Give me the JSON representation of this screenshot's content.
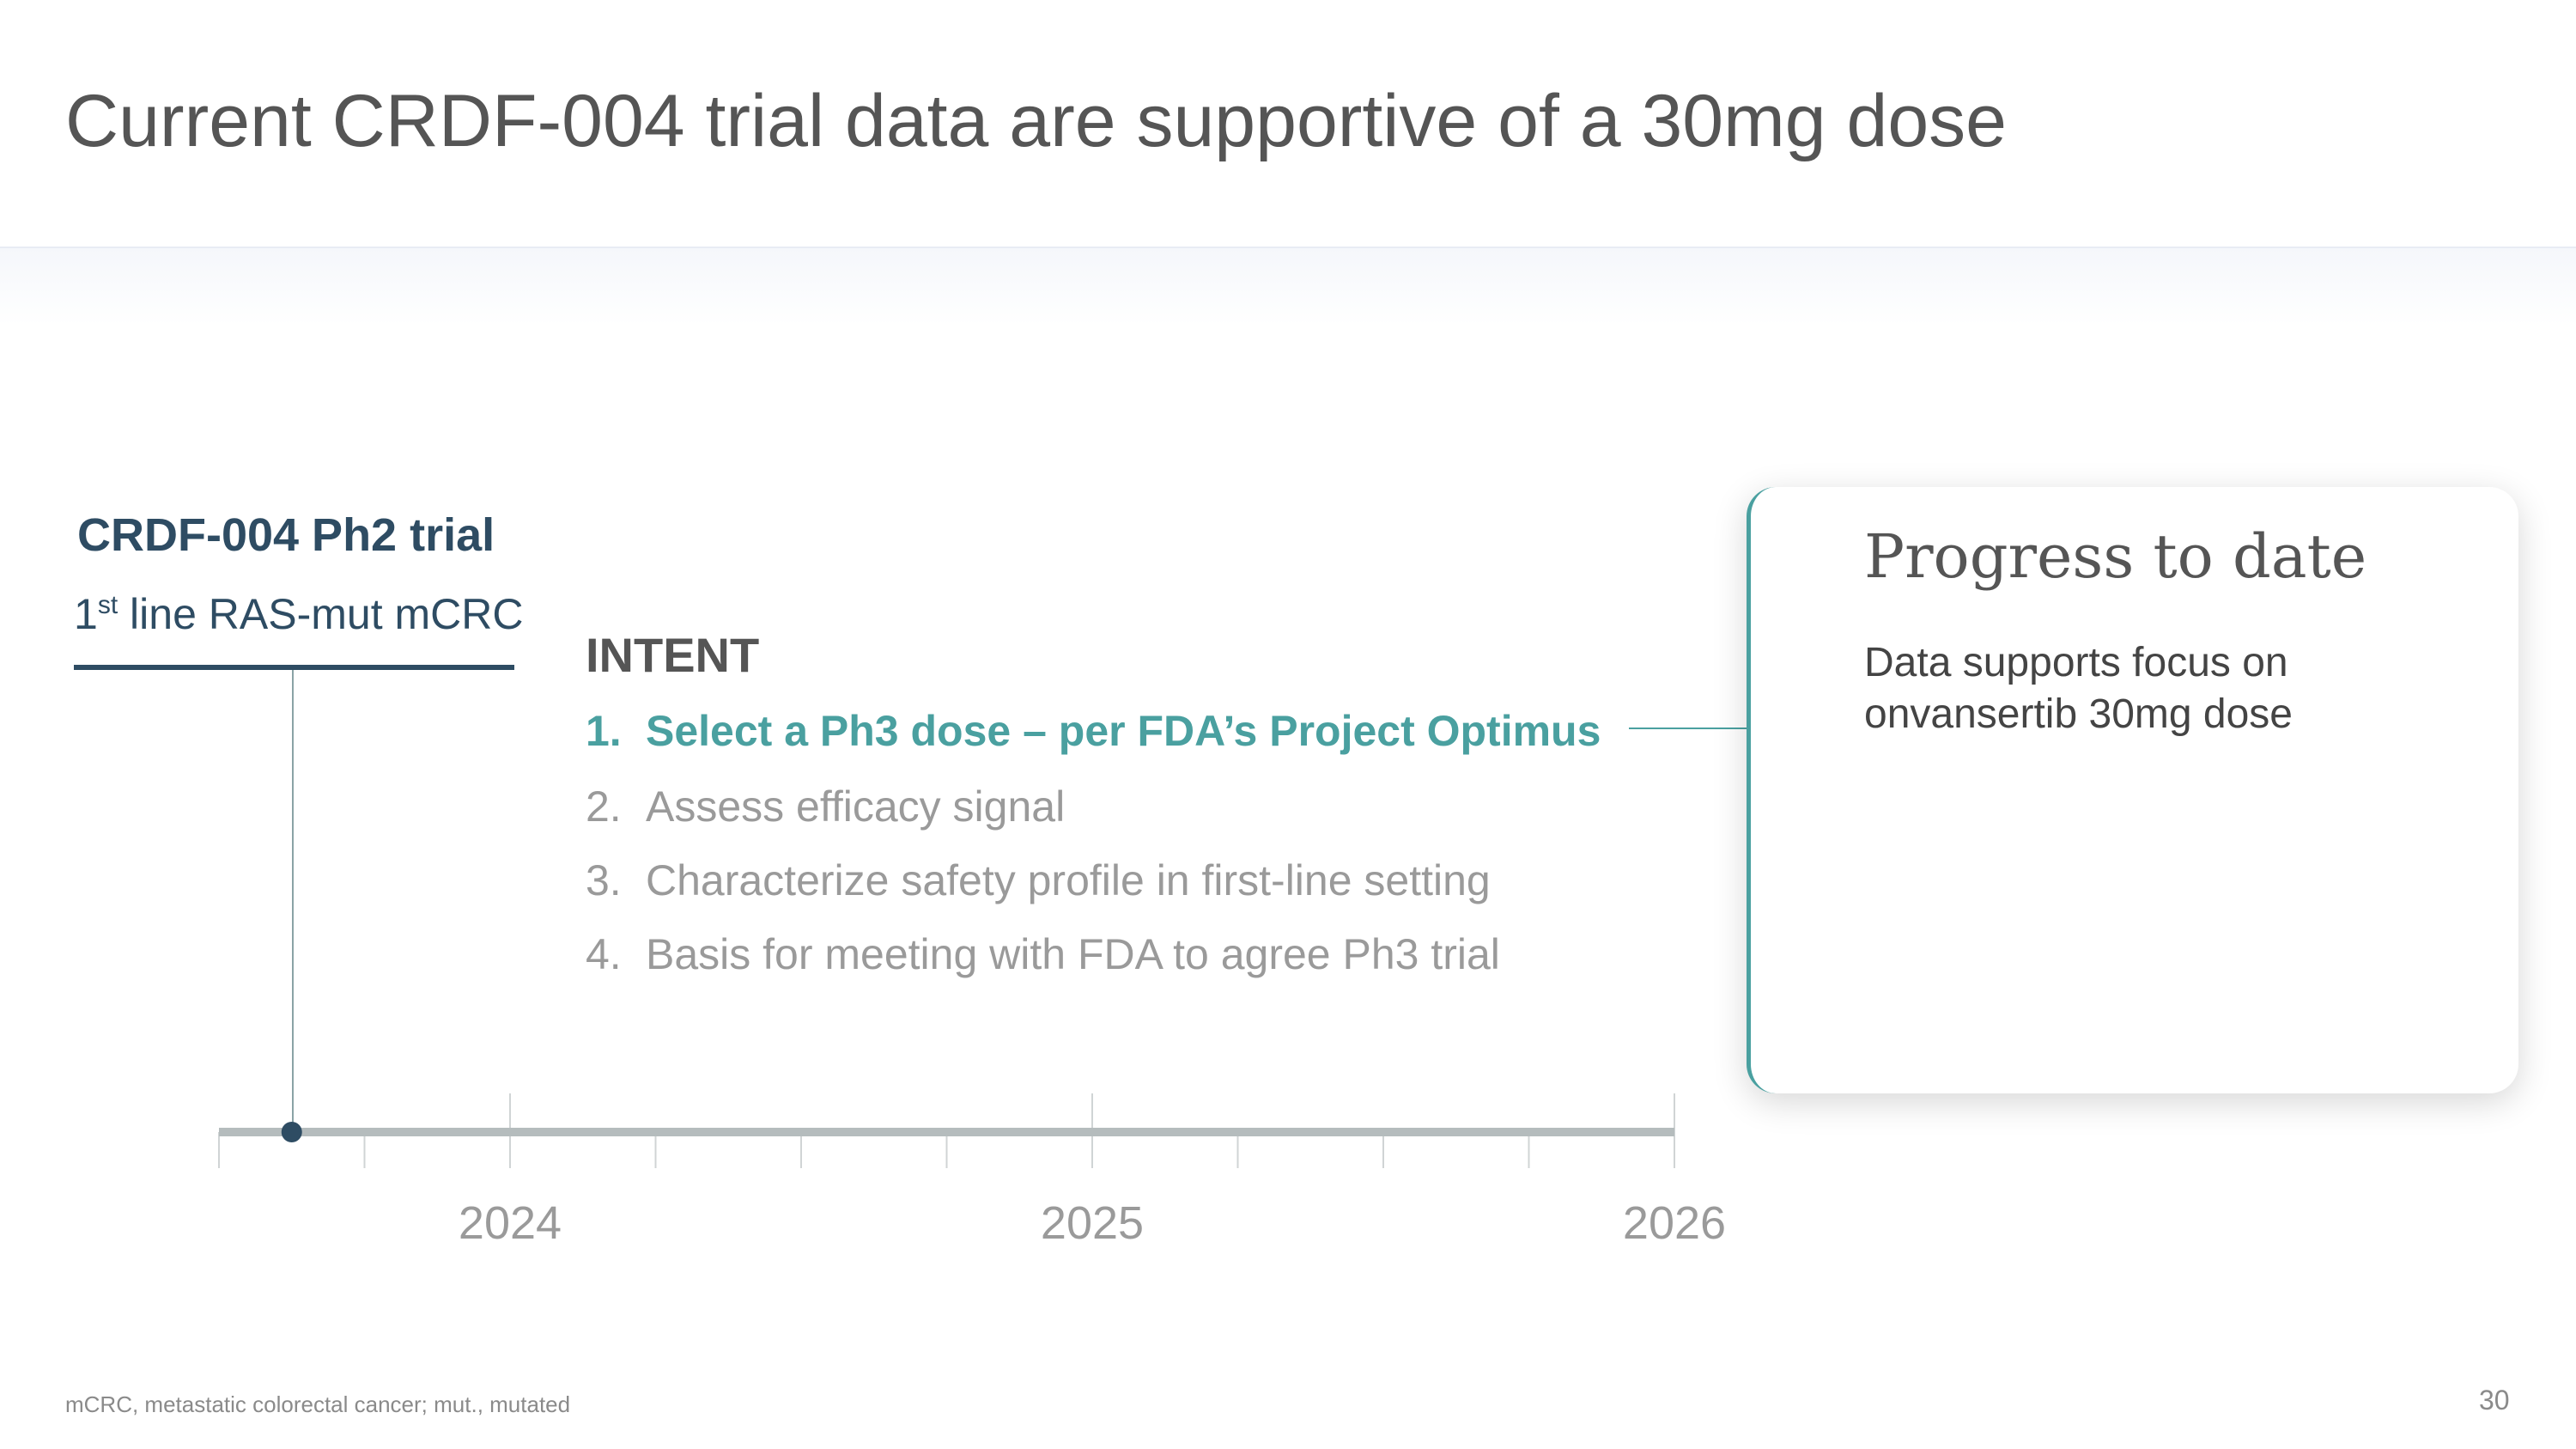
{
  "title": "Current CRDF-004 trial data are supportive of a 30mg dose",
  "trial": {
    "name": "CRDF-004 Ph2 trial",
    "line_number": "1",
    "line_superscript": "st",
    "line_rest": " line RAS-mut mCRC"
  },
  "intent": {
    "heading": "INTENT",
    "items": [
      {
        "number": "1.",
        "text": "Select a Ph3 dose – per FDA’s Project Optimus",
        "highlighted": true
      },
      {
        "number": "2.",
        "text": "Assess efficacy signal",
        "highlighted": false
      },
      {
        "number": "3.",
        "text": "Characterize safety profile in first-line setting",
        "highlighted": false
      },
      {
        "number": "4.",
        "text": "Basis for meeting with FDA to agree Ph3 trial",
        "highlighted": false
      }
    ]
  },
  "progress": {
    "title": "Progress to date",
    "body": "Data supports focus on onvansertib 30mg dose"
  },
  "timeline": {
    "start_year": 2023.5,
    "end_year": 2026.0,
    "year_labels": [
      "2024",
      "2025",
      "2026"
    ],
    "year_values": [
      2024,
      2025,
      2026
    ],
    "minor_ticks_per_year": 4,
    "marker_year": 2023.625
  },
  "colors": {
    "navy": "#2e4c63",
    "teal": "#4aa0a0",
    "gray_text": "#9a9a9a",
    "axis": "#b5bcbd"
  },
  "footnote": "mCRC, metastatic colorectal cancer; mut., mutated",
  "page_number": "30"
}
